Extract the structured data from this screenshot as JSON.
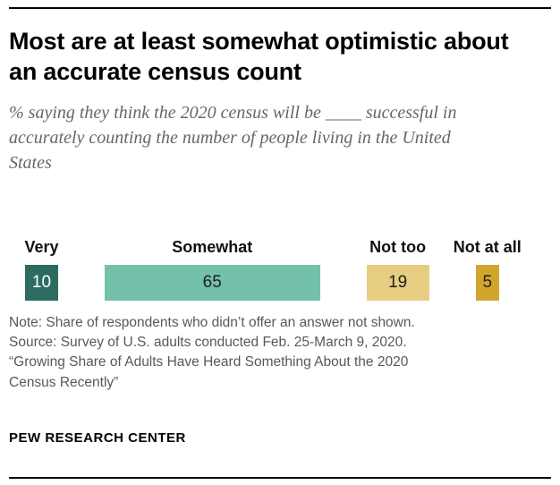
{
  "header": {
    "title": "Most are at least somewhat optimistic about an accurate census count",
    "subtitle": "% saying they think the 2020 census will be ____ successful in accurately counting the number of people living in the United States"
  },
  "chart_data": {
    "type": "bar",
    "orientation": "horizontal-segmented",
    "categories": [
      "Very",
      "Somewhat",
      "Not too",
      "Not at all"
    ],
    "values": [
      10,
      65,
      19,
      5
    ],
    "colors": [
      "#2D6B60",
      "#74C1AB",
      "#E7CD82",
      "#D0A72C"
    ],
    "value_text_colors": [
      "#ffffff",
      "#1f1f1f",
      "#1f1f1f",
      "#1f1f1f"
    ],
    "value_labels_shown": true,
    "axis_shown": false,
    "legend_position": "labels-above-bars"
  },
  "footer": {
    "note_lines": [
      "Note: Share of respondents who didn’t offer an answer not shown.",
      "Source: Survey of U.S. adults conducted Feb. 25-March 9, 2020.",
      "“Growing Share of Adults Have Heard Something About the 2020",
      "Census Recently”"
    ],
    "brand": "PEW RESEARCH CENTER"
  }
}
